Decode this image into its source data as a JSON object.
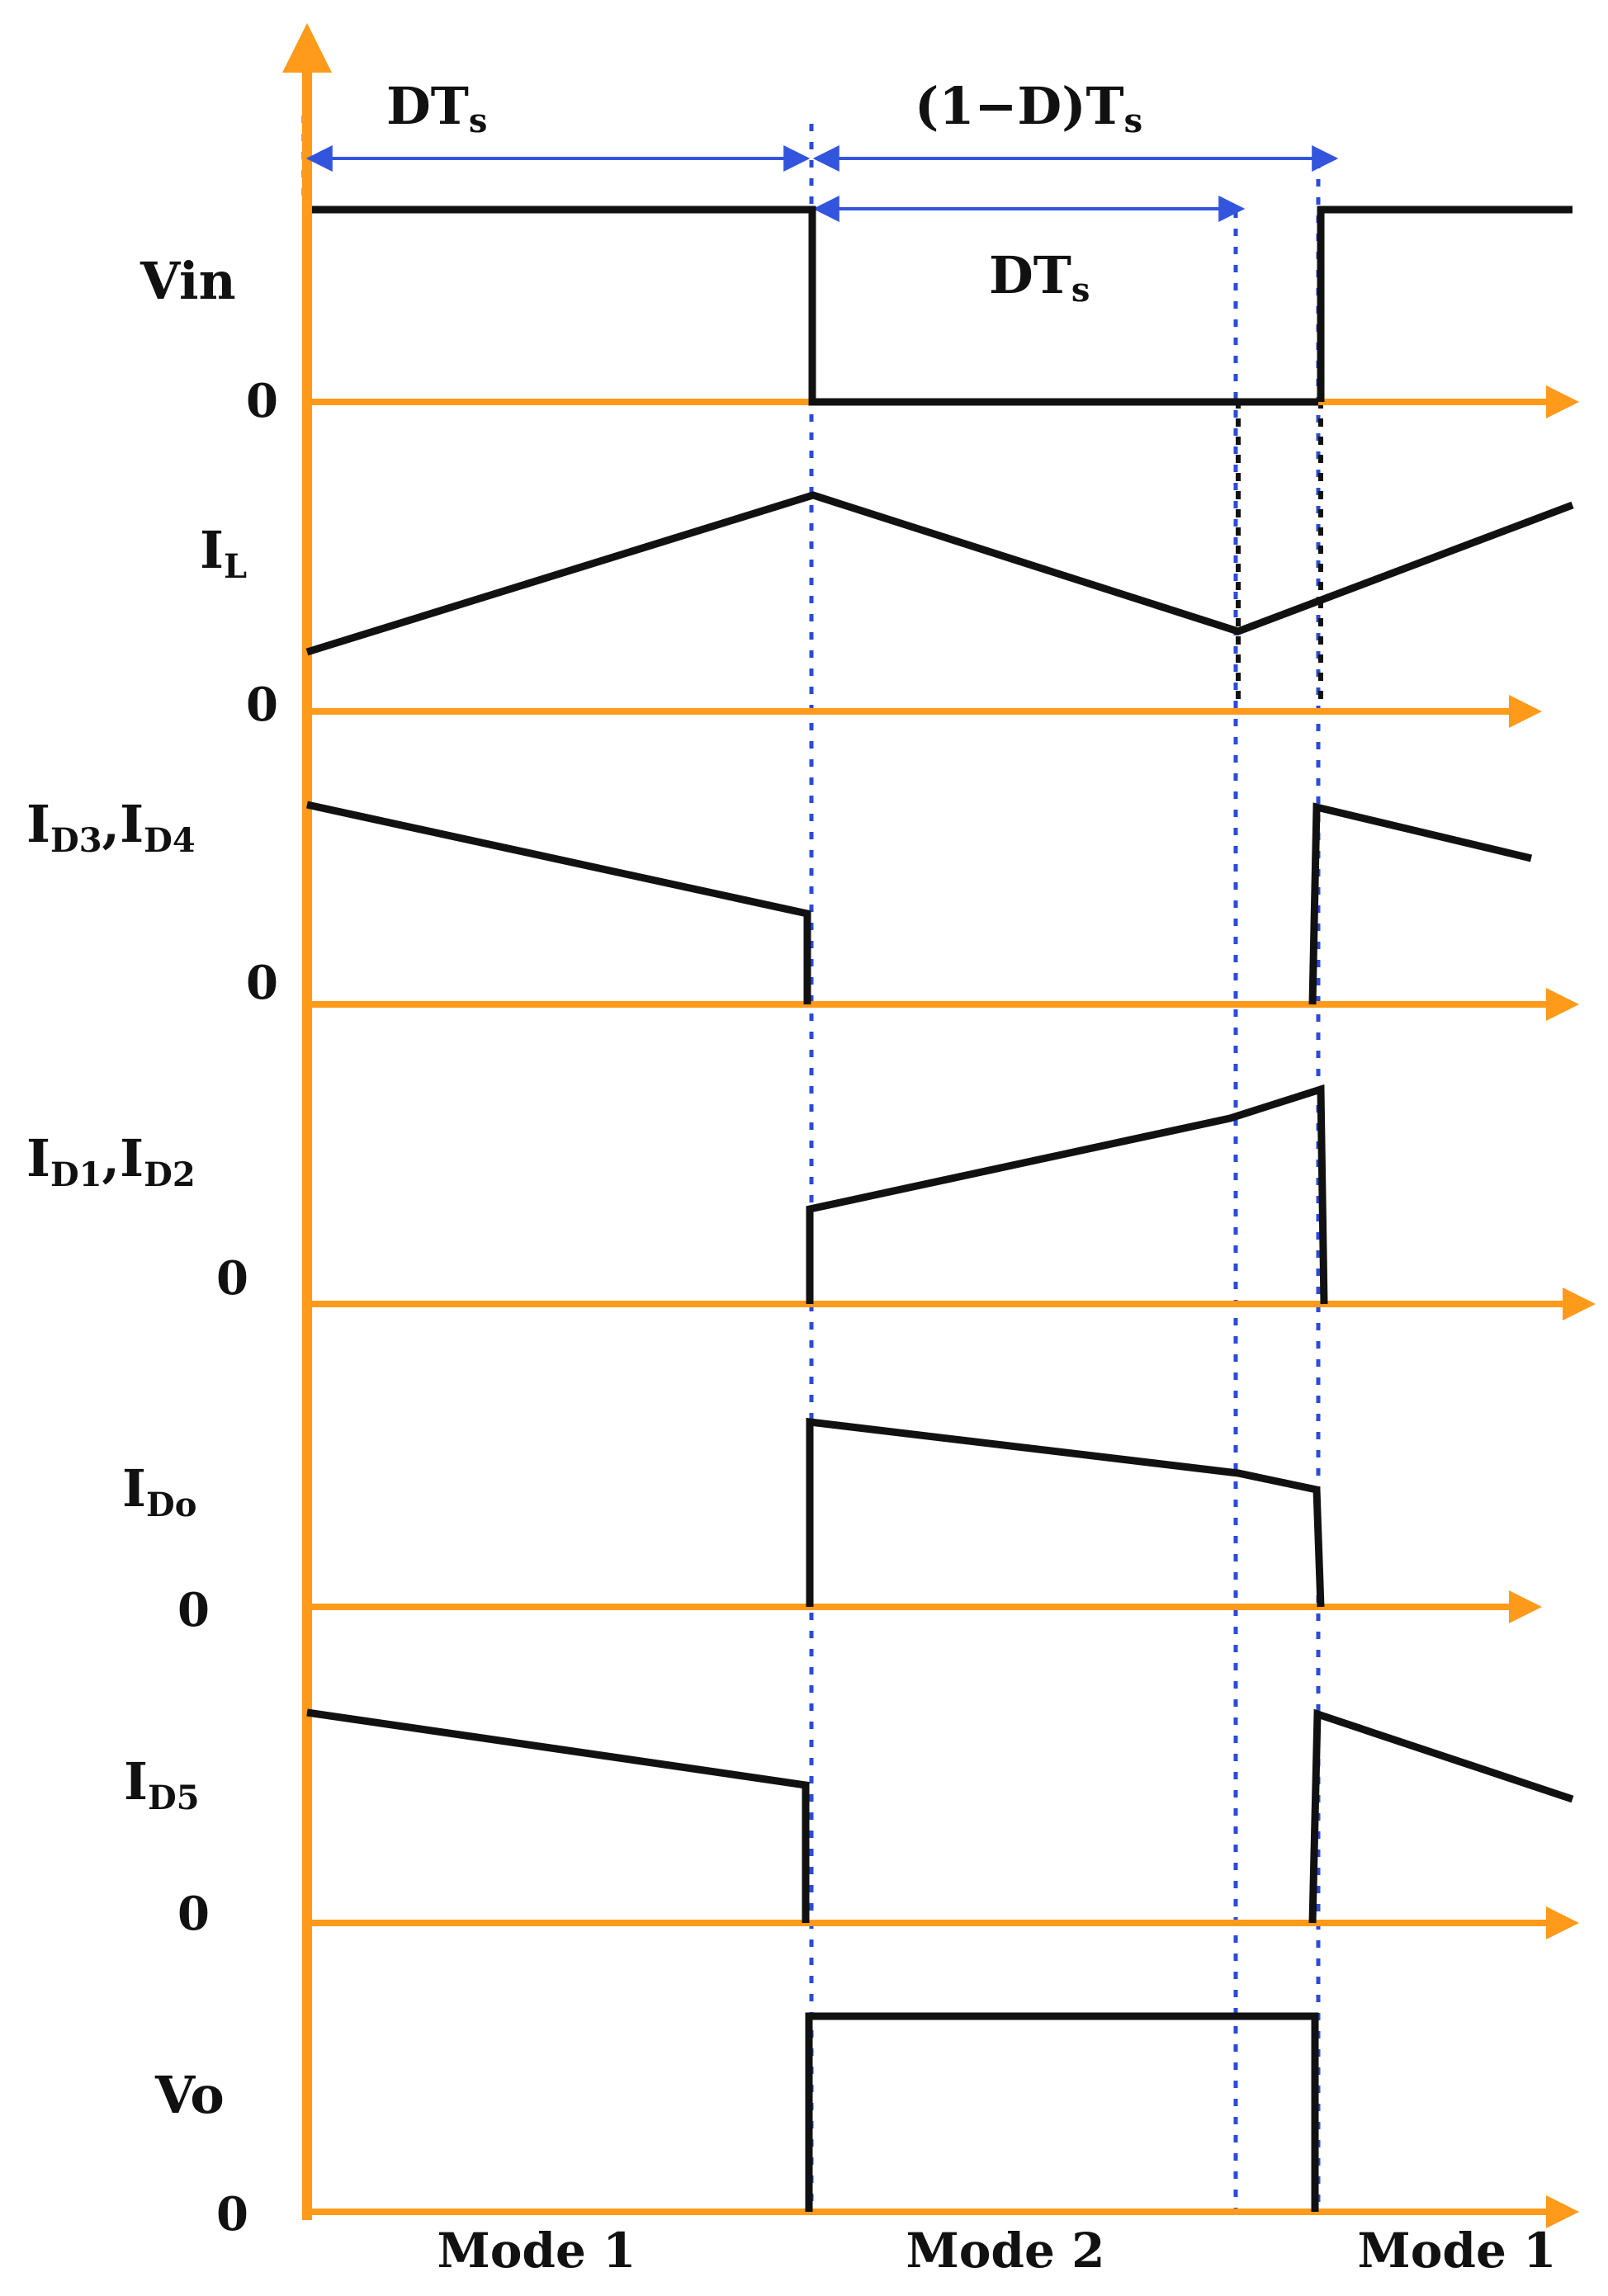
{
  "colors": {
    "axis": "#FF9A1A",
    "waveform": "#111111",
    "dimension": "#3355DD",
    "guide_blue": "#2B4BDB",
    "guide_black": "#111111"
  },
  "dimensions": {
    "top_left": {
      "main": "DT",
      "sub": "s"
    },
    "top_right": {
      "main": "(1−D)T",
      "sub": "s"
    },
    "inner": {
      "main": "DT",
      "sub": "s"
    }
  },
  "waveforms": [
    {
      "id": "vin",
      "label": {
        "main": "Vin",
        "sub": ""
      },
      "zero": "0"
    },
    {
      "id": "il",
      "label": {
        "main": "I",
        "sub": "L"
      },
      "zero": "0"
    },
    {
      "id": "id34",
      "label": {
        "main": "I",
        "sub": "D3",
        "main2": ",I",
        "sub2": "D4"
      },
      "zero": "0"
    },
    {
      "id": "id12",
      "label": {
        "main": "I",
        "sub": "D1",
        "main2": ",I",
        "sub2": "D2"
      },
      "zero": "0"
    },
    {
      "id": "ido",
      "label": {
        "main": "I",
        "sub": "Do"
      },
      "zero": "0"
    },
    {
      "id": "id5",
      "label": {
        "main": "I",
        "sub": "D5"
      },
      "zero": "0"
    },
    {
      "id": "vo",
      "label": {
        "main": "Vo",
        "sub": ""
      },
      "zero": "0"
    }
  ],
  "modes": [
    "Mode 1",
    "Mode 2",
    "Mode 1"
  ]
}
